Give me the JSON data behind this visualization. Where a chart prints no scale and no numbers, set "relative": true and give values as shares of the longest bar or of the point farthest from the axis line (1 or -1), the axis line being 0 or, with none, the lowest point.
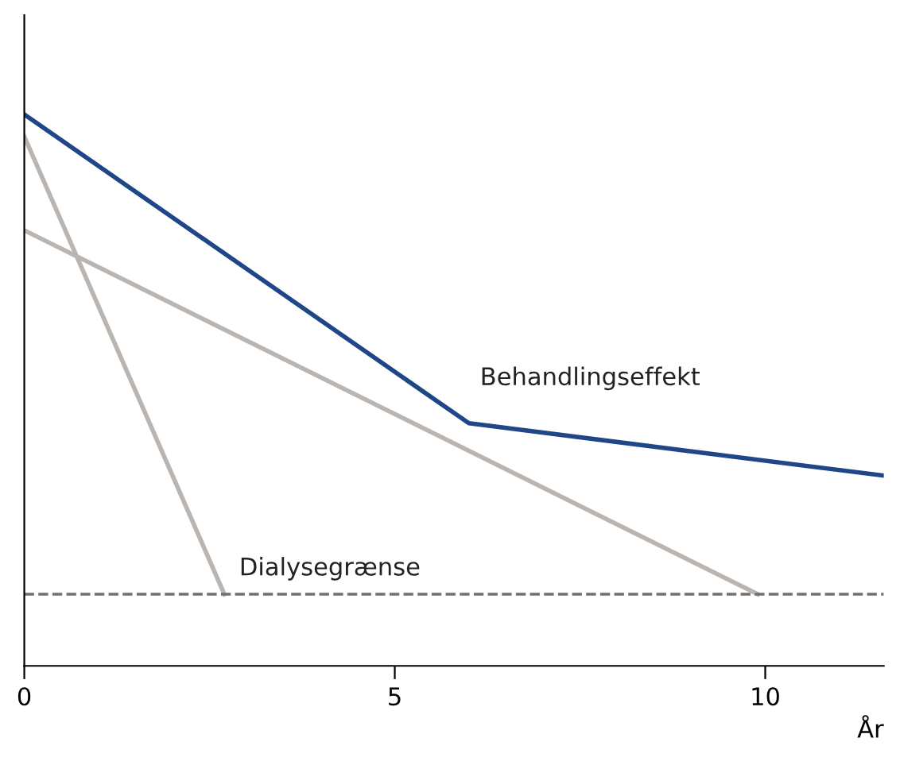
{
  "chart_data": {
    "type": "line",
    "relative": true,
    "xlabel": "År",
    "xlim": [
      0,
      11.6
    ],
    "xticks": [
      0,
      5,
      10
    ],
    "grid": false,
    "marker": "none",
    "line_style": "solid",
    "series": [
      {
        "name": "Behandlingseffekt",
        "color": "#1f4788",
        "x": [
          0,
          6,
          11.6
        ],
        "values": [
          1.0,
          0.44,
          0.345
        ]
      },
      {
        "color": "#bab5b0",
        "x": [
          0,
          2.7
        ],
        "values": [
          0.96,
          0.13
        ]
      },
      {
        "color": "#bab5b0",
        "x": [
          0,
          9.9
        ],
        "values": [
          0.79,
          0.13
        ]
      }
    ],
    "ref_lines": [
      {
        "axis": "y",
        "value": 0.13,
        "label": "Dialysegrænse",
        "color": "#707070",
        "line_style": "dashed"
      }
    ]
  }
}
